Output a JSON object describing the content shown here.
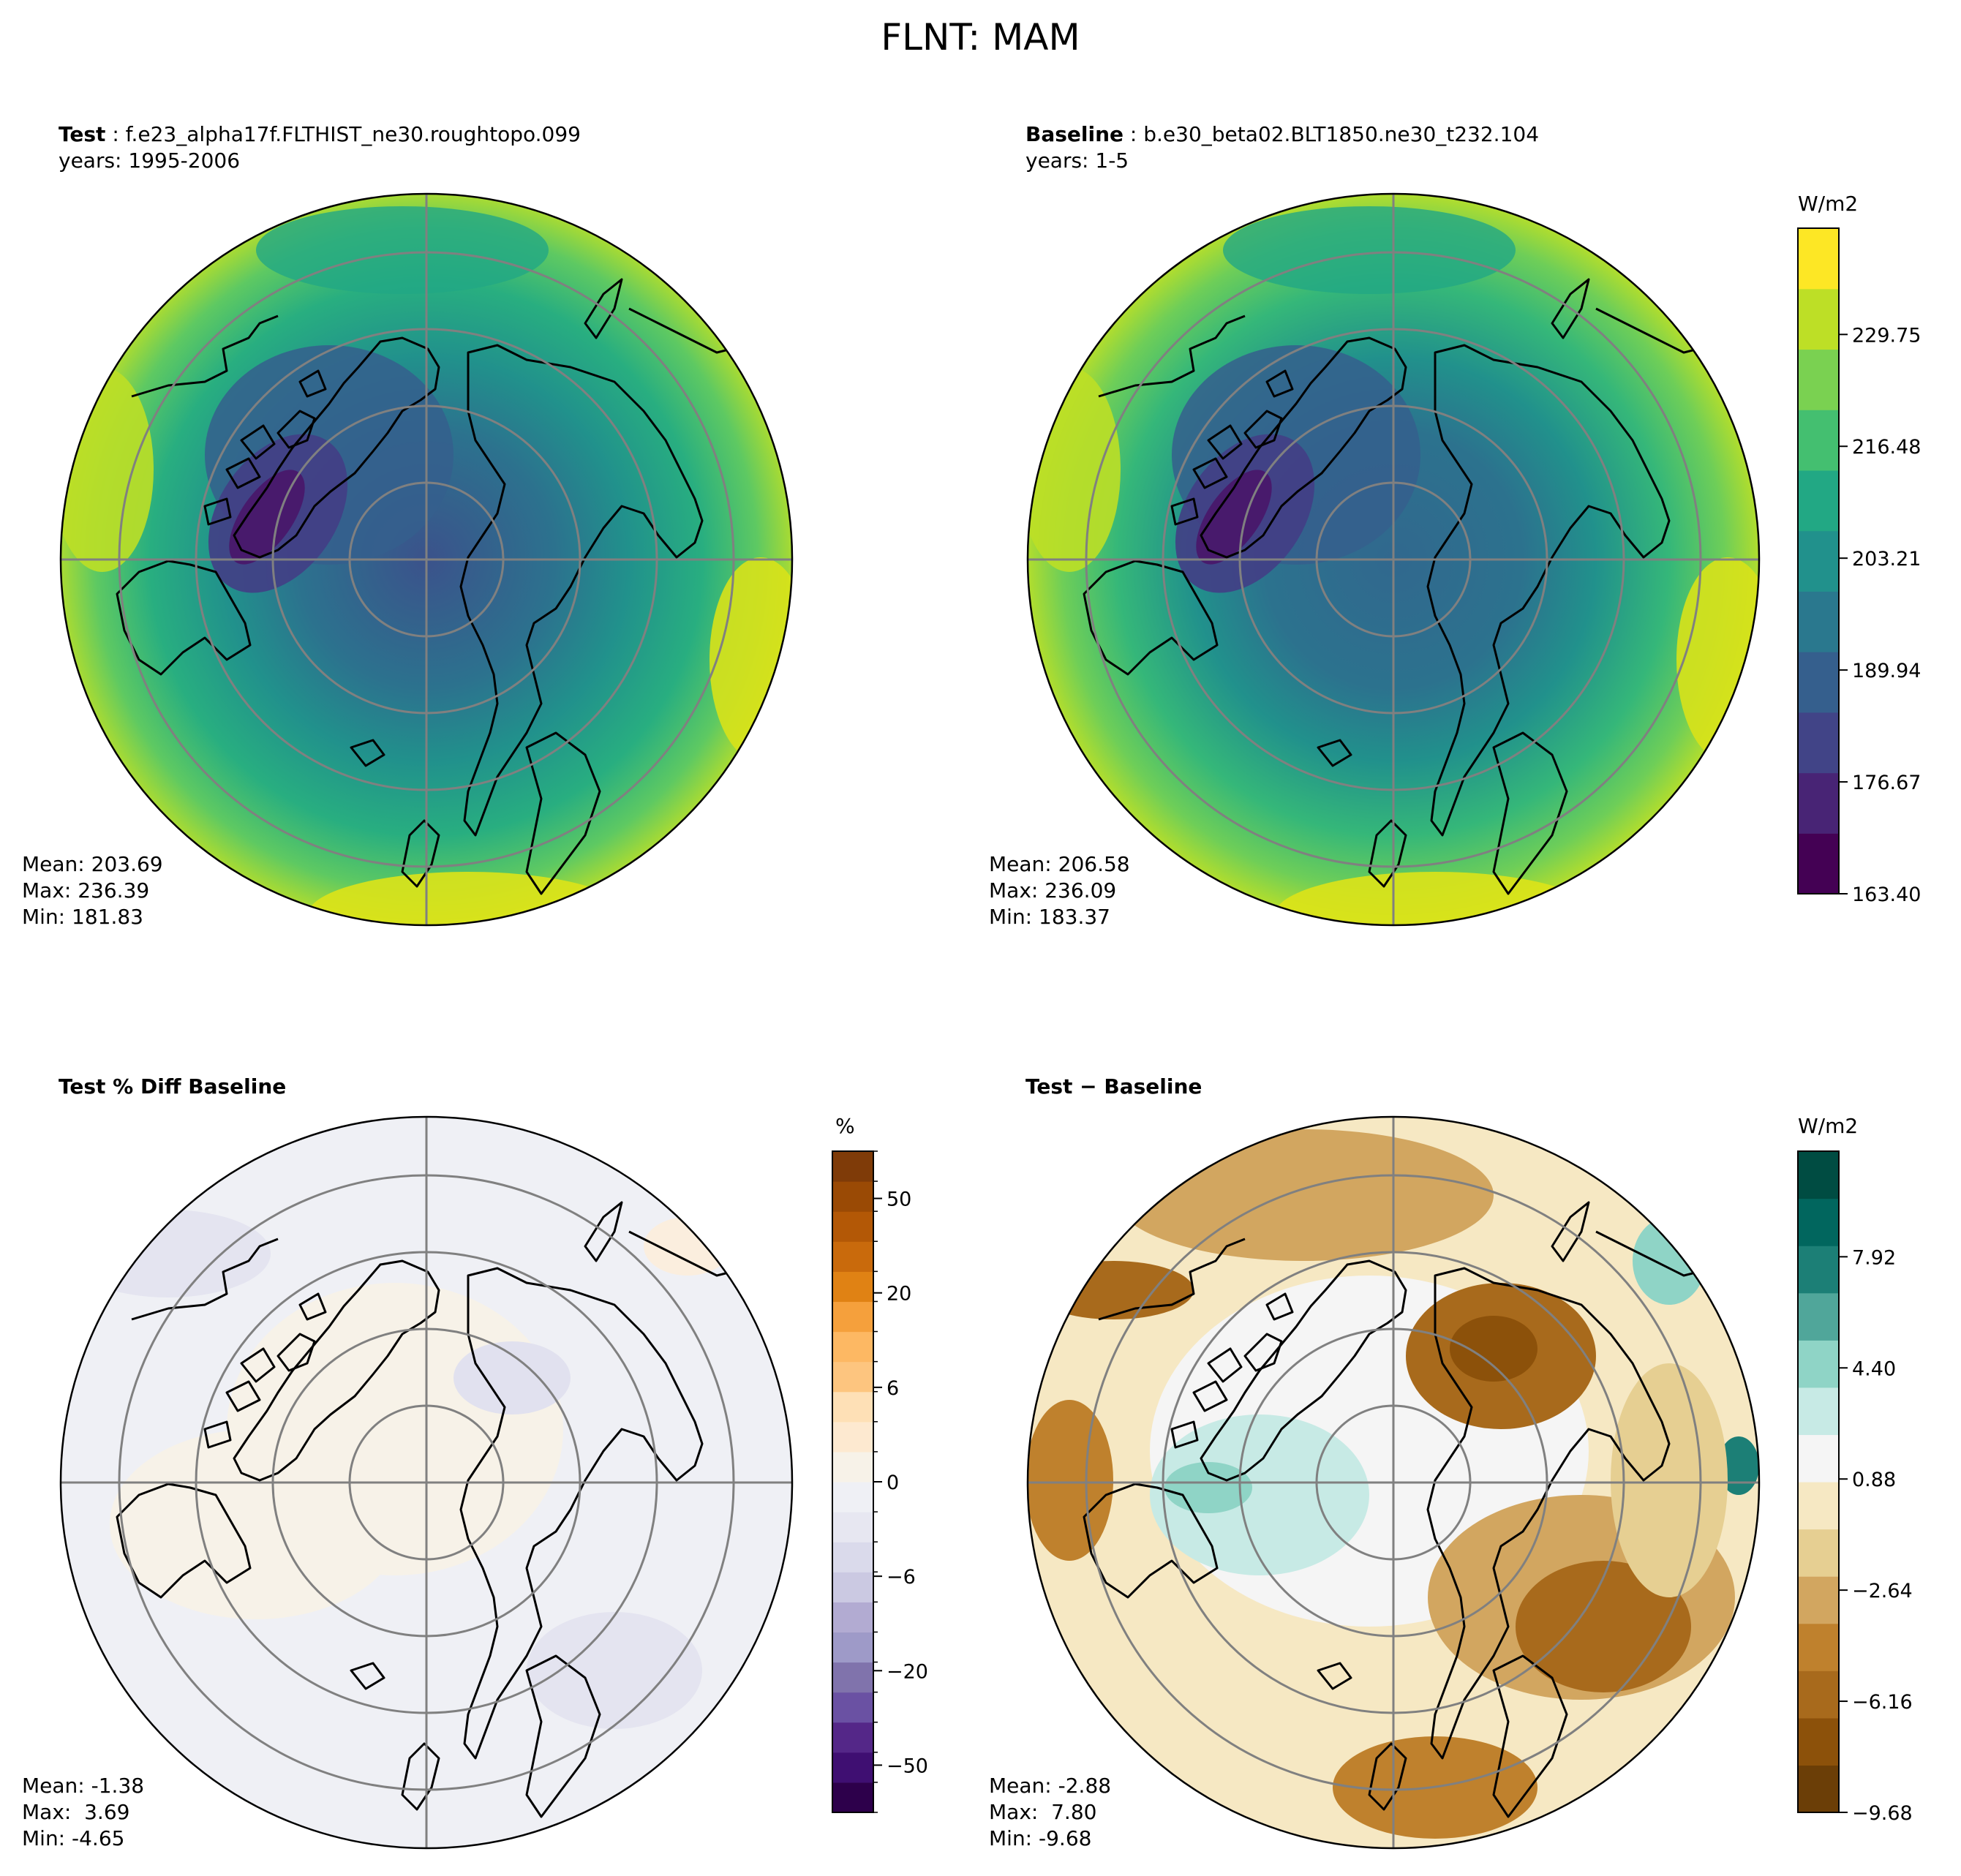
{
  "title": "FLNT: MAM",
  "panels": [
    {
      "id": "test",
      "label_bold": "Test",
      "label_rest": " : f.e23_alpha17f.FLTHIST_ne30.roughtopo.099",
      "years": "years: 1995-2006",
      "stats": {
        "mean": "Mean: 203.69",
        "max": "Max: 236.39",
        "min": "Min: 181.83"
      },
      "map_fill": "viridis"
    },
    {
      "id": "baseline",
      "label_bold": "Baseline",
      "label_rest": " : b.e30_beta02.BLT1850.ne30_t232.104",
      "years": "years: 1-5",
      "stats": {
        "mean": "Mean: 206.58",
        "max": "Max: 236.09",
        "min": "Min: 183.37"
      },
      "map_fill": "viridis"
    },
    {
      "id": "pctdiff",
      "label_bold": "Test % Diff Baseline",
      "label_rest": "",
      "years": "",
      "stats": {
        "mean": "Mean: -1.38",
        "max": "Max:  3.69",
        "min": "Min: -4.65"
      },
      "map_fill": "purple-orange"
    },
    {
      "id": "diff",
      "label_bold": "Test − Baseline",
      "label_rest": "",
      "years": "",
      "stats": {
        "mean": "Mean: -2.88",
        "max": "Max:  7.80",
        "min": "Min: -9.68"
      },
      "map_fill": "brown-teal"
    }
  ],
  "colorbars": [
    {
      "id": "cb-main",
      "units": "W/m2",
      "ticks": [
        "229.75",
        "216.48",
        "203.21",
        "189.94",
        "176.67",
        "163.40"
      ],
      "colors": [
        "#440154",
        "#482475",
        "#414487",
        "#355f8d",
        "#2a788e",
        "#21918c",
        "#22a884",
        "#44bf70",
        "#7ad151",
        "#bddf26",
        "#fde725"
      ]
    },
    {
      "id": "cb-pct",
      "units": "%",
      "ticks": [
        "50",
        "20",
        "6",
        "0",
        "−6",
        "−20",
        "−50"
      ],
      "colors": [
        "#2d004b",
        "#3f0f72",
        "#542788",
        "#6a51a3",
        "#8073ac",
        "#9e9ac8",
        "#b2abd2",
        "#cbc9e2",
        "#dadaeb",
        "#e7e7f1",
        "#eff0f5",
        "#f7f2e8",
        "#fde9d0",
        "#fee0b6",
        "#fdc57f",
        "#fdb863",
        "#f5a03c",
        "#e08214",
        "#c96a0c",
        "#b35806",
        "#9a4a05",
        "#7f3b08"
      ]
    },
    {
      "id": "cb-diff",
      "units": "W/m2",
      "ticks": [
        "7.92",
        "4.40",
        "0.88",
        "−2.64",
        "−6.16",
        "−9.68"
      ],
      "colors": [
        "#6b3e07",
        "#8c510a",
        "#a86a1c",
        "#bf812d",
        "#d2a660",
        "#e6cf92",
        "#f6e8c3",
        "#f5f5f5",
        "#c7eae5",
        "#8fd4c6",
        "#50a69a",
        "#1c7f76",
        "#01665e",
        "#004c42"
      ]
    }
  ]
}
